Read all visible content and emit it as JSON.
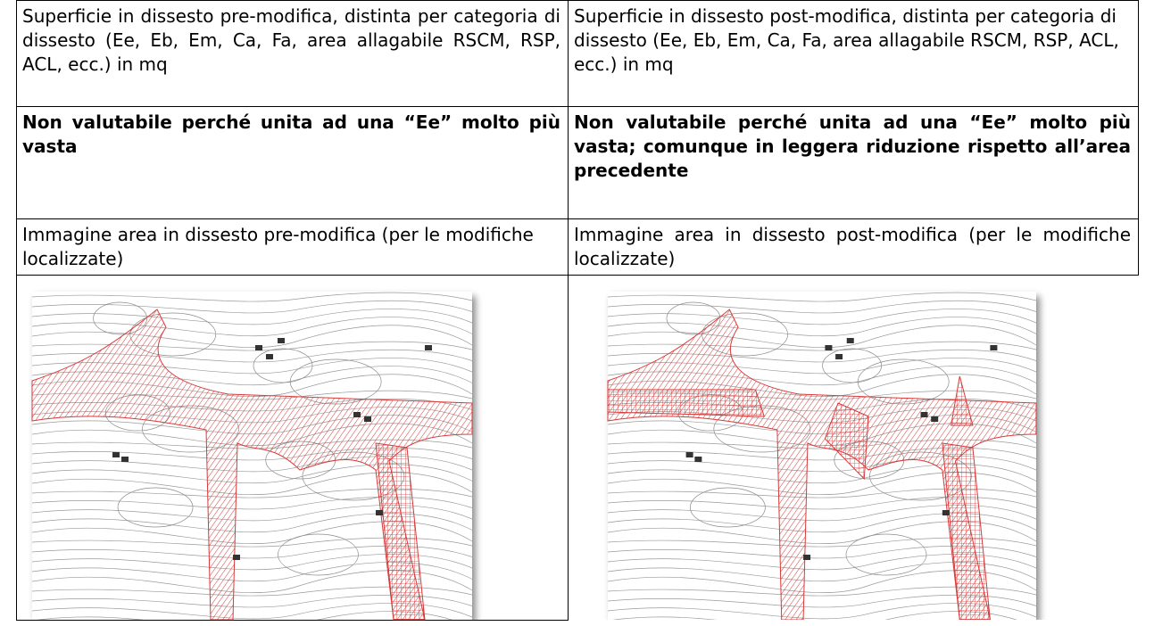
{
  "table": {
    "rows": [
      [
        "Superficie in dissesto pre-modifica, distinta per categoria di dissesto (Ee, Eb, Em, Ca, Fa, area allagabile RSCM, RSP, ACL, ecc.) in mq",
        "Superficie in dissesto post-modifica, distinta per categoria di dissesto (Ee, Eb, Em, Ca, Fa, area allagabile RSCM, RSP, ACL, ecc.) in mq"
      ],
      [
        "Non valutabile perché unita ad una “Ee” molto più vasta",
        "Non valutabile perché unita ad una “Ee” molto più vasta; comunque in leggera riduzione rispetto all’area precedente"
      ],
      [
        "Immagine area in dissesto pre-modifica (per le modifiche localizzate)",
        "Immagine area in dissesto post-modifica (per le modifiche localizzate)"
      ]
    ]
  }
}
